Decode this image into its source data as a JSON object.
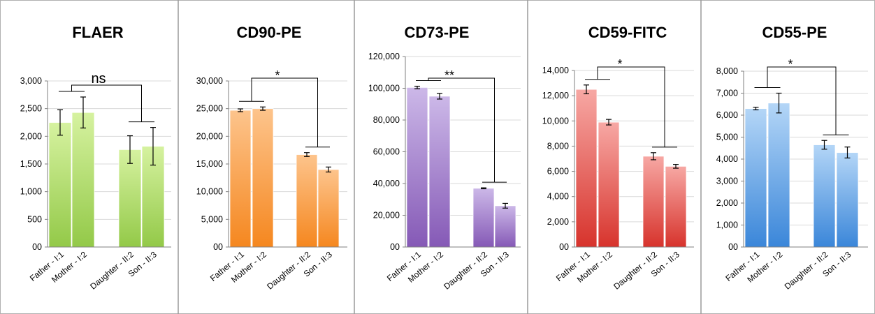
{
  "colors": {
    "FLAER": [
      "#d6f2a0",
      "#93c948"
    ],
    "CD90-PE": [
      "#fdc48c",
      "#f5871f"
    ],
    "CD73-PE": [
      "#ccb8e8",
      "#8559b6"
    ],
    "CD59-FITC": [
      "#f7a8a4",
      "#d7332c"
    ],
    "CD55-PE": [
      "#b4d6f7",
      "#3a86d9"
    ]
  },
  "chart_data": [
    {
      "type": "bar",
      "title": "FLAER",
      "categories": [
        "Father - I:1",
        "Mother - I:2",
        "Daughter - II:2",
        "Son - II:3"
      ],
      "values": [
        2250,
        2430,
        1760,
        1820
      ],
      "errors": [
        230,
        280,
        250,
        340
      ],
      "ylim": [
        0,
        3000
      ],
      "yticks": [
        "00",
        "500",
        "1,000",
        "1,500",
        "2,000",
        "2,500",
        "3,000"
      ],
      "significance": "ns"
    },
    {
      "type": "bar",
      "title": "CD90-PE",
      "categories": [
        "Father - I:1",
        "Mother - I:2",
        "Daughter - II:2",
        "Son - II:3"
      ],
      "values": [
        24700,
        25000,
        16700,
        14000
      ],
      "errors": [
        250,
        300,
        350,
        450
      ],
      "ylim": [
        0,
        30000
      ],
      "yticks": [
        "00",
        "5,000",
        "10,000",
        "15,000",
        "20,000",
        "25,000",
        "30,000"
      ],
      "significance": "*"
    },
    {
      "type": "bar",
      "title": "CD73-PE",
      "categories": [
        "Father - I:1",
        "Mother - I:2",
        "Daughter - II:2",
        "Son - II:3"
      ],
      "values": [
        100500,
        95000,
        37000,
        26000
      ],
      "errors": [
        800,
        1800,
        300,
        1500
      ],
      "ylim": [
        0,
        120000
      ],
      "yticks": [
        "00",
        "20,000",
        "40,000",
        "60,000",
        "80,000",
        "100,000",
        "120,000"
      ],
      "significance": "**"
    },
    {
      "type": "bar",
      "title": "CD59-FITC",
      "categories": [
        "Father - I:1",
        "Mother - I:2",
        "Daughter - II:2",
        "Son - II:3"
      ],
      "values": [
        12500,
        9900,
        7200,
        6400
      ],
      "errors": [
        350,
        220,
        280,
        150
      ],
      "ylim": [
        0,
        14000
      ],
      "yticks": [
        "00",
        "2,000",
        "4,000",
        "6,000",
        "8,000",
        "10,000",
        "12,000",
        "14,000"
      ],
      "significance": "*"
    },
    {
      "type": "bar",
      "title": "CD55-PE",
      "categories": [
        "Father - I:1",
        "Mother - I:2",
        "Daughter - II:2",
        "Son - II:3"
      ],
      "values": [
        6300,
        6550,
        4650,
        4300
      ],
      "errors": [
        60,
        450,
        200,
        250
      ],
      "ylim": [
        0,
        8000
      ],
      "yticks": [
        "00",
        "1,000",
        "2,000",
        "3,000",
        "4,000",
        "5,000",
        "6,000",
        "7,000",
        "8,000"
      ],
      "significance": "*"
    }
  ]
}
